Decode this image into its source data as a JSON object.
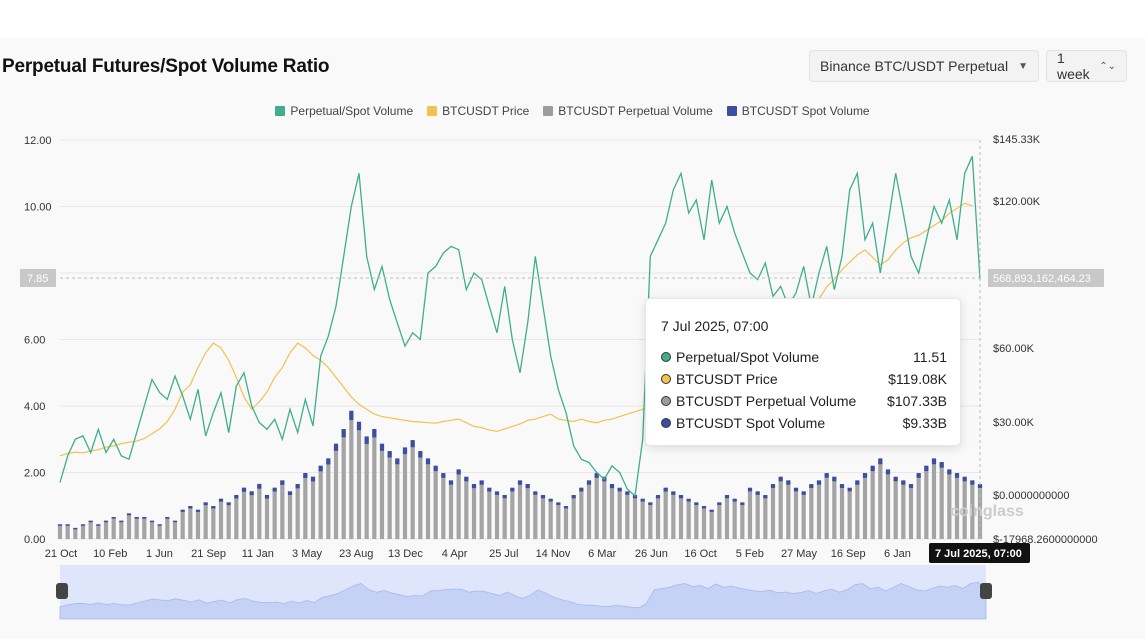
{
  "header": {
    "title": "Perpetual Futures/Spot Volume Ratio",
    "pair_select": "Binance BTC/USDT Perpetual",
    "range_select": "1 week"
  },
  "legend": [
    {
      "label": "Perpetual/Spot Volume",
      "color": "#3fae8e"
    },
    {
      "label": "BTCUSDT Price",
      "color": "#f0c24e"
    },
    {
      "label": "BTCUSDT Perpetual Volume",
      "color": "#9c9c9c"
    },
    {
      "label": "BTCUSDT Spot Volume",
      "color": "#3c4ea0"
    }
  ],
  "crosshair": {
    "left_value": "7.85",
    "right_value": "568,893,162,464.23",
    "x_label": "7 Jul 2025, 07:00"
  },
  "tooltip": {
    "time": "7 Jul 2025, 07:00",
    "rows": [
      {
        "name": "Perpetual/Spot Volume",
        "value": "11.51",
        "color": "#3fae8e"
      },
      {
        "name": "BTCUSDT Price",
        "value": "$119.08K",
        "color": "#f0c24e"
      },
      {
        "name": "BTCUSDT Perpetual Volume",
        "value": "$107.33B",
        "color": "#9c9c9c"
      },
      {
        "name": "BTCUSDT Spot Volume",
        "value": "$9.33B",
        "color": "#3c4ea0"
      }
    ]
  },
  "watermark": "coinglass",
  "chart_data": {
    "type": "line",
    "left_axis": {
      "ticks": [
        "0.00",
        "2.00",
        "4.00",
        "6.00",
        "8.00",
        "10.00",
        "12.00"
      ],
      "ylim": [
        0,
        12
      ]
    },
    "right_axis": {
      "ticks": [
        "$-17968.2600000000",
        "$0.0000000000",
        "$30.00K",
        "$60.00K",
        "$120.00K",
        "$145.33K"
      ]
    },
    "x_ticks": [
      "21 Oct",
      "10 Feb",
      "1 Jun",
      "21 Sep",
      "11 Jan",
      "3 May",
      "23 Aug",
      "13 Dec",
      "4 Apr",
      "25 Jul",
      "14 Nov",
      "6 Mar",
      "26 Jun",
      "16 Oct",
      "5 Feb",
      "27 May",
      "16 Sep",
      "6 Jan"
    ],
    "series": [
      {
        "name": "Perpetual/Spot Volume",
        "axis": "left",
        "color": "#3fae8e",
        "values": [
          1.7,
          2.5,
          3.0,
          3.1,
          2.6,
          3.3,
          2.6,
          3.0,
          2.5,
          2.4,
          3.2,
          4.0,
          4.8,
          4.4,
          4.2,
          4.9,
          4.3,
          3.6,
          4.5,
          3.1,
          3.8,
          4.4,
          3.2,
          4.6,
          5.0,
          4.0,
          3.5,
          3.3,
          3.6,
          3.0,
          3.9,
          3.2,
          4.2,
          3.4,
          5.5,
          6.1,
          7.0,
          8.5,
          10.0,
          11.0,
          8.5,
          7.5,
          8.2,
          7.2,
          6.5,
          5.8,
          6.2,
          6.0,
          8.0,
          8.2,
          8.6,
          8.8,
          8.7,
          7.5,
          8.0,
          7.8,
          7.0,
          6.2,
          7.6,
          6.0,
          5.0,
          6.5,
          8.5,
          7.0,
          5.5,
          4.5,
          3.8,
          2.8,
          2.4,
          2.3,
          2.0,
          1.8,
          2.2,
          2.0,
          1.5,
          1.3,
          3.0,
          8.5,
          9.0,
          9.5,
          10.5,
          11.0,
          9.8,
          10.2,
          9.0,
          10.8,
          9.5,
          10.0,
          9.2,
          8.6,
          8.0,
          7.8,
          8.3,
          7.3,
          7.6,
          7.0,
          7.4,
          8.2,
          7.0,
          8.0,
          8.8,
          7.5,
          8.5,
          10.5,
          11.0,
          9.0,
          9.5,
          8.0,
          9.5,
          11.0,
          9.8,
          8.5,
          8.0,
          9.0,
          10.0,
          9.5,
          10.2,
          9.0,
          11.0,
          11.51,
          7.8
        ]
      },
      {
        "name": "BTCUSDT Price",
        "axis": "right",
        "color": "#f0c24e",
        "values": [
          16000,
          17000,
          17500,
          17200,
          18000,
          18500,
          19500,
          20000,
          21000,
          21500,
          22000,
          23000,
          25000,
          27000,
          30000,
          35000,
          42000,
          45000,
          52000,
          58000,
          62000,
          60000,
          55000,
          48000,
          40000,
          35000,
          38000,
          42000,
          48000,
          52000,
          58000,
          62000,
          60000,
          57000,
          55000,
          52000,
          48000,
          44000,
          40000,
          37000,
          35000,
          33000,
          32000,
          31500,
          31000,
          30500,
          30000,
          29800,
          29500,
          29300,
          30000,
          30500,
          31000,
          29500,
          28000,
          27500,
          26500,
          26000,
          27000,
          28000,
          29000,
          30500,
          31000,
          32000,
          33000,
          31000,
          30500,
          30000,
          31000,
          30000,
          29500,
          30500,
          31000,
          32000,
          33000,
          34000,
          35000,
          36000,
          37000,
          38000,
          40000,
          42000,
          44000,
          46000,
          48000,
          50000,
          52000,
          55000,
          58000,
          61000,
          63000,
          62000,
          65000,
          67000,
          66000,
          68000,
          70000,
          72000,
          75000,
          80000,
          85000,
          88000,
          92000,
          95000,
          98000,
          100000,
          97000,
          94000,
          96000,
          100000,
          103000,
          105000,
          106000,
          108000,
          110000,
          112000,
          115000,
          117000,
          119080,
          118000
        ]
      },
      {
        "name": "BTCUSDT Perpetual Volume",
        "axis": "right",
        "color": "#9c9c9c",
        "values": [
          4,
          4,
          3,
          4,
          5,
          4,
          5,
          6,
          5,
          7,
          6,
          6,
          5,
          4,
          6,
          5,
          8,
          9,
          8,
          10,
          9,
          11,
          10,
          12,
          14,
          13,
          15,
          12,
          14,
          16,
          13,
          15,
          18,
          17,
          20,
          22,
          26,
          30,
          35,
          32,
          28,
          30,
          26,
          24,
          22,
          25,
          27,
          24,
          22,
          20,
          18,
          16,
          19,
          17,
          15,
          16,
          14,
          13,
          12,
          14,
          16,
          15,
          13,
          12,
          11,
          10,
          9,
          12,
          14,
          16,
          18,
          17,
          15,
          14,
          13,
          12,
          11,
          10,
          12,
          14,
          13,
          12,
          11,
          10,
          9,
          8,
          10,
          12,
          11,
          10,
          14,
          13,
          12,
          15,
          17,
          16,
          14,
          13,
          15,
          16,
          18,
          17,
          15,
          14,
          16,
          18,
          20,
          22,
          19,
          17,
          16,
          15,
          18,
          20,
          22,
          21,
          19,
          18,
          17,
          16,
          15
        ]
      },
      {
        "name": "BTCUSDT Spot Volume",
        "axis": "right",
        "color": "#3c4ea0",
        "values": [
          0.5,
          0.5,
          0.4,
          0.5,
          0.6,
          0.5,
          0.6,
          0.7,
          0.6,
          0.9,
          0.8,
          0.8,
          0.6,
          0.5,
          0.8,
          0.6,
          1.0,
          1.1,
          1.0,
          1.3,
          1.1,
          1.4,
          1.3,
          1.6,
          1.9,
          1.8,
          2.2,
          1.6,
          1.8,
          2.1,
          1.7,
          2.0,
          2.3,
          2.2,
          2.6,
          2.8,
          3.3,
          3.8,
          4.3,
          3.9,
          3.5,
          3.9,
          3.3,
          3.0,
          2.7,
          3.1,
          3.3,
          3.0,
          2.7,
          2.5,
          2.2,
          2.0,
          2.4,
          2.1,
          1.9,
          2.0,
          1.8,
          1.6,
          1.5,
          1.7,
          2.0,
          1.9,
          1.6,
          1.5,
          1.3,
          1.2,
          1.1,
          1.5,
          1.8,
          2.0,
          2.2,
          2.1,
          1.9,
          1.7,
          1.6,
          1.5,
          1.3,
          1.2,
          1.5,
          1.8,
          1.6,
          1.5,
          1.3,
          1.2,
          1.1,
          1.0,
          1.2,
          1.5,
          1.3,
          1.2,
          1.7,
          1.6,
          1.5,
          1.8,
          2.1,
          2.0,
          1.7,
          1.6,
          1.8,
          2.0,
          2.2,
          2.1,
          1.8,
          1.7,
          2.0,
          2.2,
          2.5,
          2.7,
          2.3,
          2.1,
          2.0,
          1.8,
          2.2,
          2.5,
          2.7,
          2.6,
          2.3,
          2.2,
          2.1,
          2.0,
          1.8
        ]
      }
    ]
  }
}
